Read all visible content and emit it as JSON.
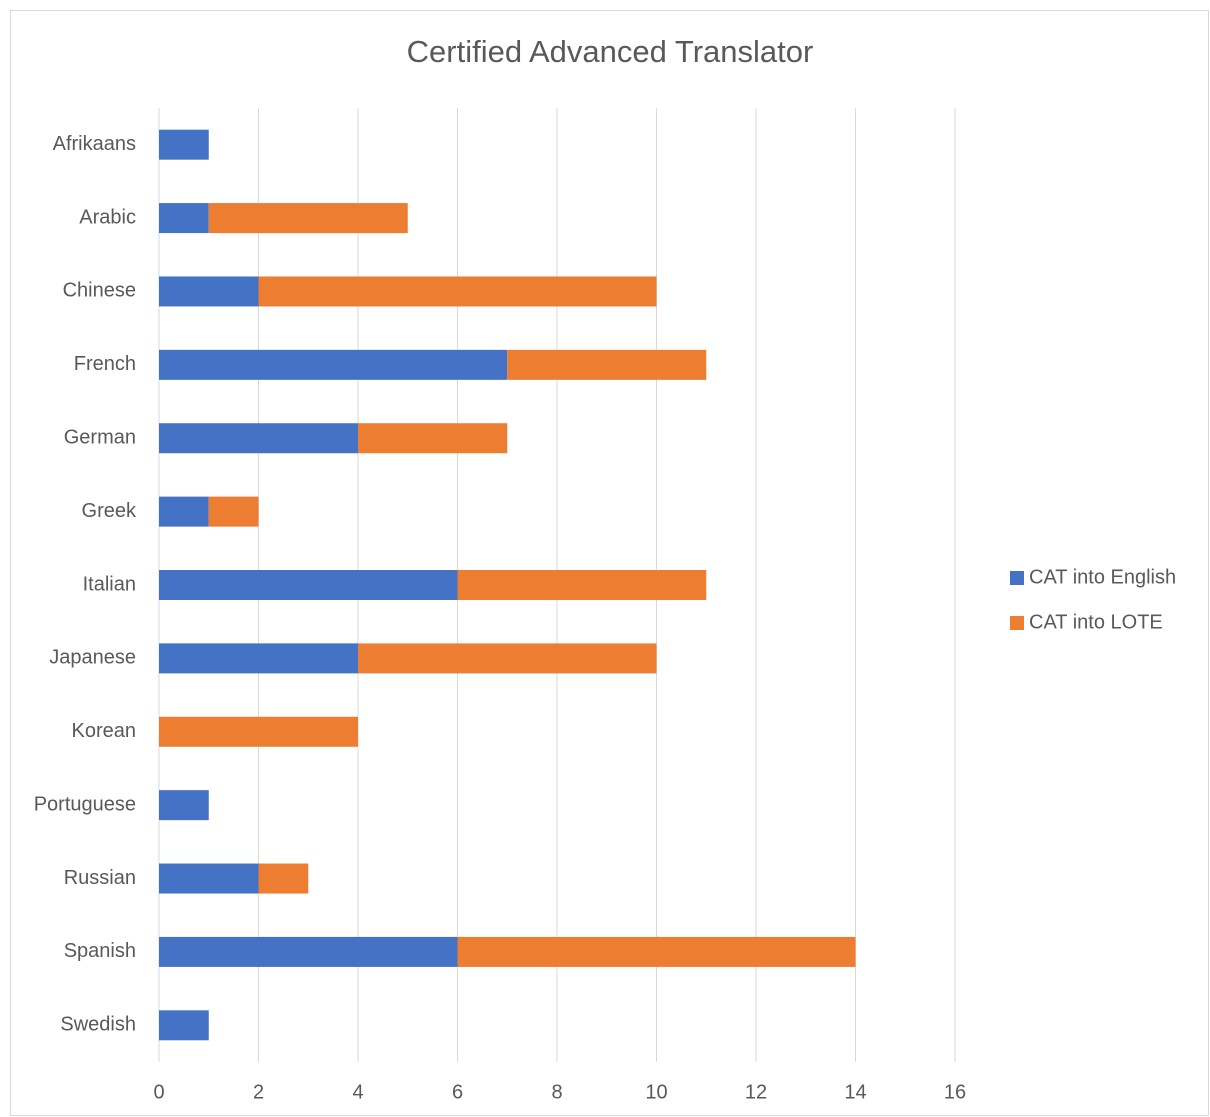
{
  "chart_data": {
    "type": "bar",
    "orientation": "horizontal",
    "stacked": true,
    "title": "Certified Advanced Translator",
    "categories": [
      "Afrikaans",
      "Arabic",
      "Chinese",
      "French",
      "German",
      "Greek",
      "Italian",
      "Japanese",
      "Korean",
      "Portuguese",
      "Russian",
      "Spanish",
      "Swedish"
    ],
    "series": [
      {
        "name": "CAT into English",
        "color": "#4472c4",
        "values": [
          1,
          1,
          2,
          7,
          4,
          1,
          6,
          4,
          0,
          1,
          2,
          6,
          1
        ]
      },
      {
        "name": "CAT into LOTE",
        "color": "#ed7d31",
        "values": [
          0,
          4,
          8,
          4,
          3,
          1,
          5,
          6,
          4,
          0,
          1,
          8,
          0
        ]
      }
    ],
    "xlim": [
      0,
      16
    ],
    "xticks": [
      0,
      2,
      4,
      6,
      8,
      10,
      12,
      14,
      16
    ],
    "grid": true,
    "legend": "right"
  }
}
